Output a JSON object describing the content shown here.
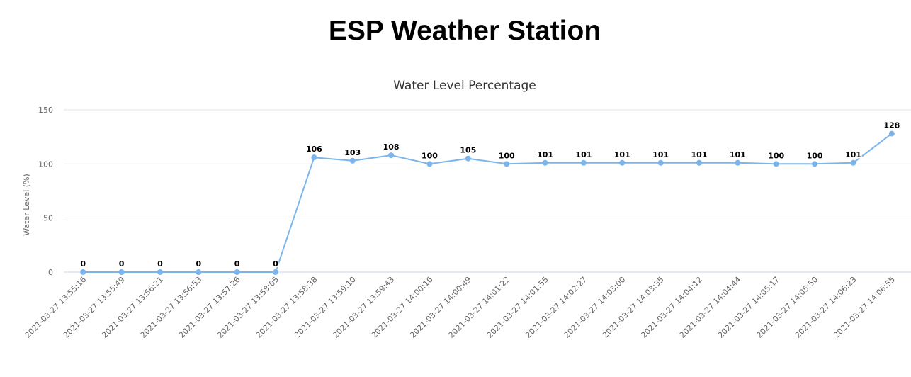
{
  "page": {
    "heading": "ESP Weather Station"
  },
  "chart_data": {
    "type": "line",
    "title": "Water Level Percentage",
    "xlabel": "",
    "ylabel": "Water Level (%)",
    "ylim": [
      0,
      150
    ],
    "yticks": [
      0,
      50,
      100,
      150
    ],
    "grid": true,
    "legend": "none",
    "data_labels": true,
    "series_color": "#7cb5ec",
    "categories": [
      "2021-03-27 13:55:16",
      "2021-03-27 13:55:49",
      "2021-03-27 13:56:21",
      "2021-03-27 13:56:53",
      "2021-03-27 13:57:26",
      "2021-03-27 13:58:05",
      "2021-03-27 13:58:38",
      "2021-03-27 13:59:10",
      "2021-03-27 13:59:43",
      "2021-03-27 14:00:16",
      "2021-03-27 14:00:49",
      "2021-03-27 14:01:22",
      "2021-03-27 14:01:55",
      "2021-03-27 14:02:27",
      "2021-03-27 14:03:00",
      "2021-03-27 14:03:35",
      "2021-03-27 14:04:12",
      "2021-03-27 14:04:44",
      "2021-03-27 14:05:17",
      "2021-03-27 14:05:50",
      "2021-03-27 14:06:23",
      "2021-03-27 14:06:55"
    ],
    "values": [
      0,
      0,
      0,
      0,
      0,
      0,
      106,
      103,
      108,
      100,
      105,
      100,
      101,
      101,
      101,
      101,
      101,
      101,
      100,
      100,
      101,
      128
    ]
  }
}
